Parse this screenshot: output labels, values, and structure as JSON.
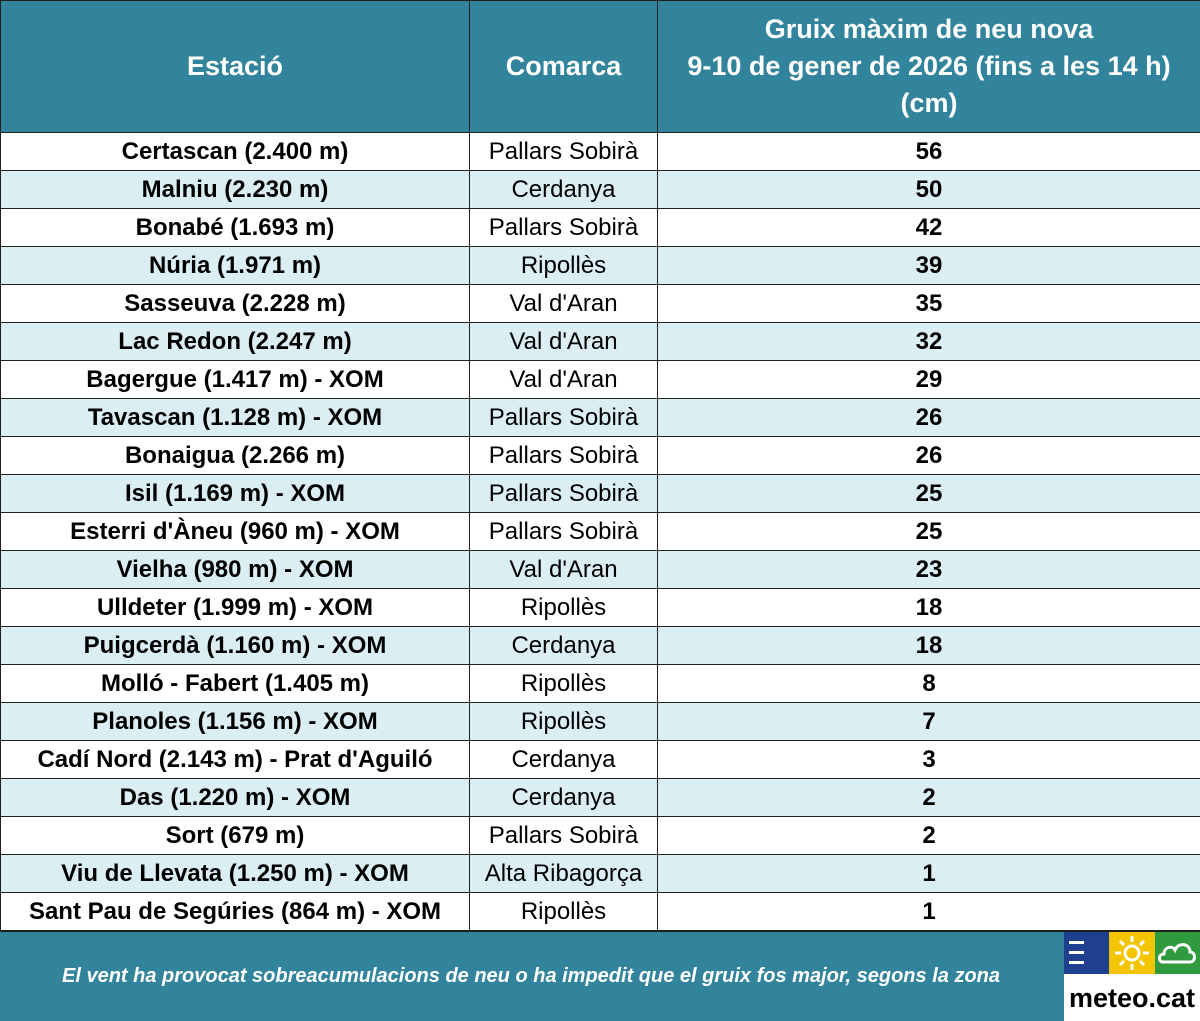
{
  "table": {
    "headers": {
      "station": "Estació",
      "region": "Comarca",
      "depth_line1": "Gruix màxim de neu nova",
      "depth_line2": "9-10 de gener de 2026 (fins a les 14 h)",
      "depth_line3": "(cm)"
    },
    "rows": [
      {
        "station": "Certascan (2.400 m)",
        "region": "Pallars Sobirà",
        "depth": "56"
      },
      {
        "station": "Malniu (2.230 m)",
        "region": "Cerdanya",
        "depth": "50"
      },
      {
        "station": "Bonabé (1.693 m)",
        "region": "Pallars Sobirà",
        "depth": "42"
      },
      {
        "station": "Núria (1.971 m)",
        "region": "Ripollès",
        "depth": "39"
      },
      {
        "station": "Sasseuva (2.228 m)",
        "region": "Val d'Aran",
        "depth": "35"
      },
      {
        "station": "Lac Redon (2.247 m)",
        "region": "Val d'Aran",
        "depth": "32"
      },
      {
        "station": "Bagergue (1.417 m) - XOM",
        "region": "Val d'Aran",
        "depth": "29"
      },
      {
        "station": "Tavascan (1.128 m) - XOM",
        "region": "Pallars Sobirà",
        "depth": "26"
      },
      {
        "station": "Bonaigua (2.266 m)",
        "region": "Pallars Sobirà",
        "depth": "26"
      },
      {
        "station": "Isil (1.169 m) - XOM",
        "region": "Pallars Sobirà",
        "depth": "25"
      },
      {
        "station": "Esterri d'Àneu (960 m) - XOM",
        "region": "Pallars Sobirà",
        "depth": "25"
      },
      {
        "station": "Vielha (980 m) - XOM",
        "region": "Val d'Aran",
        "depth": "23"
      },
      {
        "station": "Ulldeter (1.999 m) - XOM",
        "region": "Ripollès",
        "depth": "18"
      },
      {
        "station": "Puigcerdà (1.160 m) - XOM",
        "region": "Cerdanya",
        "depth": "18"
      },
      {
        "station": "Molló - Fabert (1.405 m)",
        "region": "Ripollès",
        "depth": "8"
      },
      {
        "station": "Planoles (1.156 m) - XOM",
        "region": "Ripollès",
        "depth": "7"
      },
      {
        "station": "Cadí Nord (2.143 m) - Prat d'Aguiló",
        "region": "Cerdanya",
        "depth": "3"
      },
      {
        "station": "Das (1.220 m) - XOM",
        "region": "Cerdanya",
        "depth": "2"
      },
      {
        "station": "Sort (679 m)",
        "region": "Pallars Sobirà",
        "depth": "2"
      },
      {
        "station": "Viu de Llevata (1.250 m) - XOM",
        "region": "Alta Ribagorça",
        "depth": "1"
      },
      {
        "station": "Sant Pau de Segúries (864 m) - XOM",
        "region": "Ripollès",
        "depth": "1"
      }
    ]
  },
  "footer": {
    "note": "El vent ha provocat sobreacumulacions de neu o ha impedit que el gruix fos major, segons la zona",
    "logo_text": "meteo.cat",
    "logo_icons": [
      "fog-lines-icon",
      "sun-icon",
      "cloud-icon"
    ]
  },
  "colors": {
    "header_bg": "#31849b",
    "alt_row_bg": "#daeef3",
    "header_text": "#ffffff"
  }
}
